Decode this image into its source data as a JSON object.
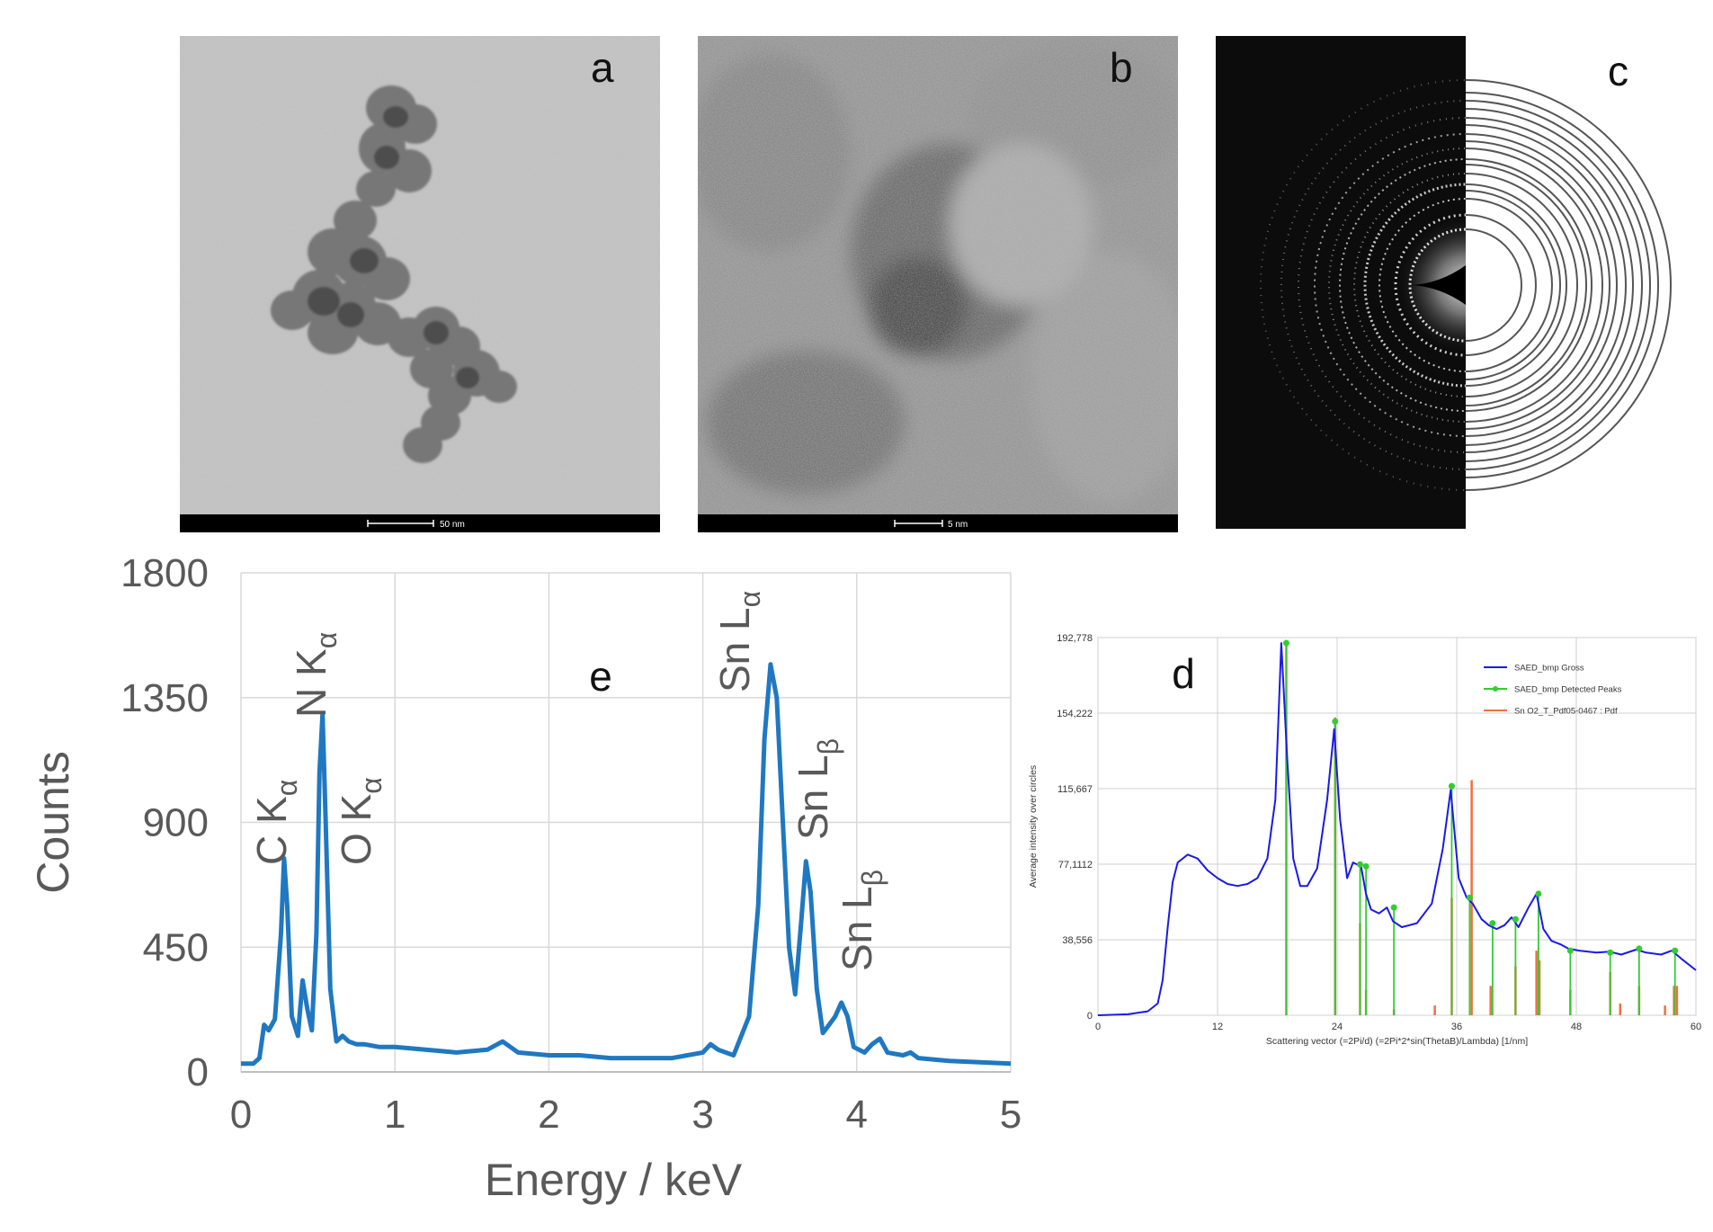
{
  "panel_a": {
    "label": "a",
    "scale_bar": "50 nm"
  },
  "panel_b": {
    "label": "b",
    "scale_bar": "5 nm"
  },
  "panel_c": {
    "label": "c"
  },
  "chart_data": [
    {
      "panel": "e",
      "type": "line",
      "label": "e",
      "xlabel": "Energy  / keV",
      "ylabel": "Counts",
      "xlim": [
        0,
        5
      ],
      "ylim": [
        0,
        1800
      ],
      "xticks": [
        "0",
        "1",
        "2",
        "3",
        "4",
        "5"
      ],
      "yticks": [
        "0",
        "450",
        "900",
        "1350",
        "1800"
      ],
      "grid": true,
      "color": "#1f78c1",
      "peak_labels": [
        {
          "element": "C",
          "line": "K",
          "sub": "α",
          "x": 0.28
        },
        {
          "element": "N",
          "line": "K",
          "sub": "α",
          "x": 0.53
        },
        {
          "element": "O",
          "line": "K",
          "sub": "α",
          "x": 0.78
        },
        {
          "element": "Sn",
          "line": "L",
          "sub": "α",
          "x": 3.44
        },
        {
          "element": "Sn",
          "line": "L",
          "sub": "β",
          "x": 3.69
        },
        {
          "element": "Sn",
          "line": "L",
          "sub": "β",
          "x": 3.92
        }
      ],
      "series": [
        {
          "x": [
            0,
            0.08,
            0.12,
            0.15,
            0.18,
            0.22,
            0.26,
            0.28,
            0.3,
            0.33,
            0.37,
            0.4,
            0.43,
            0.46,
            0.49,
            0.51,
            0.53,
            0.55,
            0.58,
            0.62,
            0.66,
            0.7,
            0.75,
            0.8,
            0.9,
            1.0,
            1.2,
            1.4,
            1.6,
            1.7,
            1.8,
            2.0,
            2.2,
            2.4,
            2.6,
            2.8,
            3.0,
            3.05,
            3.1,
            3.2,
            3.3,
            3.36,
            3.4,
            3.44,
            3.48,
            3.52,
            3.56,
            3.6,
            3.64,
            3.67,
            3.7,
            3.74,
            3.78,
            3.82,
            3.86,
            3.9,
            3.94,
            3.98,
            4.05,
            4.1,
            4.15,
            4.2,
            4.3,
            4.35,
            4.4,
            4.6,
            4.8,
            5.0
          ],
          "y": [
            30,
            30,
            50,
            170,
            150,
            190,
            500,
            770,
            600,
            200,
            130,
            330,
            230,
            150,
            500,
            1080,
            1290,
            900,
            300,
            110,
            130,
            110,
            100,
            100,
            90,
            90,
            80,
            70,
            80,
            110,
            70,
            60,
            60,
            50,
            50,
            50,
            70,
            100,
            80,
            60,
            200,
            600,
            1200,
            1470,
            1350,
            900,
            450,
            280,
            550,
            760,
            650,
            300,
            140,
            170,
            200,
            250,
            200,
            90,
            70,
            100,
            120,
            70,
            60,
            70,
            50,
            40,
            35,
            30
          ]
        }
      ]
    },
    {
      "panel": "d",
      "type": "line",
      "label": "d",
      "xlabel": "Scattering vector (=2Pi/d) (=2Pi*2*sin(ThetaB)/Lambda) [1/nm]",
      "ylabel": "Average intensity over circles",
      "xlim": [
        0,
        60
      ],
      "ylim": [
        0,
        192778
      ],
      "xticks": [
        "0",
        "12",
        "24",
        "36",
        "48",
        "60"
      ],
      "yticks": [
        "0",
        "38,556",
        "77,1112",
        "115,667",
        "154,222",
        "192,778"
      ],
      "grid": true,
      "legend": "top-right",
      "series": [
        {
          "name": "SAED_bmp Gross",
          "color": "#1a1ae6",
          "x": [
            0,
            3,
            5,
            6,
            6.5,
            7,
            7.5,
            8,
            9,
            10,
            11,
            12,
            13,
            14,
            15,
            16,
            17,
            17.8,
            18.4,
            19,
            19.6,
            20.3,
            21,
            22,
            23,
            23.7,
            24.3,
            25,
            25.6,
            26.4,
            26.9,
            27.4,
            28.2,
            29,
            29.6,
            30.5,
            32,
            33.5,
            34.6,
            35.4,
            36.2,
            37,
            37.6,
            38.5,
            39.2,
            40,
            40.8,
            41.5,
            42.2,
            43.2,
            44,
            44.7,
            45.5,
            46.5,
            47.2,
            48.3,
            50,
            51.3,
            52.5,
            54,
            55,
            56.5,
            57.6,
            58.5,
            60
          ],
          "y": [
            0,
            500,
            2000,
            6000,
            18000,
            45000,
            68000,
            78000,
            82000,
            80000,
            74000,
            70000,
            67000,
            66000,
            67000,
            70000,
            80000,
            110000,
            190000,
            130000,
            80000,
            66000,
            66000,
            75000,
            110000,
            146000,
            100000,
            70000,
            78000,
            76000,
            62000,
            54000,
            52000,
            55000,
            48000,
            45000,
            47000,
            57000,
            85000,
            115000,
            70000,
            60000,
            57000,
            49000,
            46000,
            44000,
            46000,
            50000,
            45000,
            55000,
            62000,
            44000,
            38000,
            36000,
            34000,
            33000,
            32000,
            32500,
            31000,
            33500,
            32000,
            31000,
            33000,
            29000,
            23000
          ]
        },
        {
          "name": "SAED_bmp Detected Peaks",
          "color": "#33cc33",
          "x": [
            18.9,
            23.8,
            26.3,
            26.9,
            29.7,
            35.5,
            37.3,
            39.6,
            41.9,
            44.2,
            47.4,
            51.4,
            54.3,
            57.9
          ],
          "y": [
            190000,
            150000,
            77000,
            76000,
            55000,
            117000,
            60000,
            47000,
            49000,
            62000,
            33000,
            32000,
            34000,
            33000
          ]
        },
        {
          "name": "Sn O2_T_Pdf05-0467 : Pdf",
          "color": "#f07040",
          "x": [
            18.9,
            23.8,
            26.3,
            26.9,
            29.7,
            33.8,
            35.5,
            37.5,
            39.4,
            41.9,
            44.0,
            44.3,
            47.4,
            51.4,
            52.4,
            54.3,
            56.9,
            57.8,
            58.1
          ],
          "y": [
            190000,
            152000,
            47000,
            13000,
            3000,
            5000,
            60000,
            120000,
            15000,
            25000,
            33000,
            28000,
            13000,
            22000,
            6000,
            15000,
            5000,
            15000,
            15000
          ]
        }
      ]
    }
  ]
}
